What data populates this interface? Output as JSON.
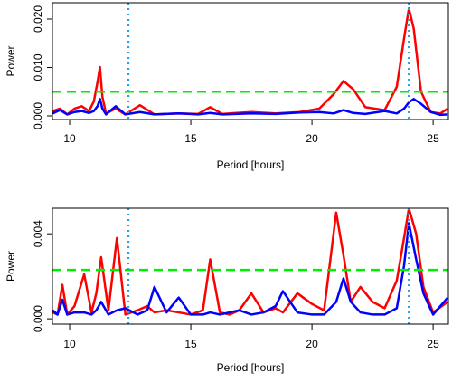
{
  "chart_data": [
    {
      "type": "line",
      "xlabel": "Period [hours]",
      "ylabel": "Power",
      "x": [
        9.3,
        9.6,
        9.9,
        10.2,
        10.5,
        10.8,
        11.0,
        11.15,
        11.25,
        11.35,
        11.5,
        11.9,
        12.3,
        12.9,
        13.5,
        14.5,
        15.3,
        15.8,
        16.3,
        17.5,
        18.5,
        19.5,
        20.3,
        20.9,
        21.3,
        21.7,
        22.2,
        23.0,
        23.5,
        23.8,
        24.0,
        24.2,
        24.5,
        24.9,
        25.3,
        25.6
      ],
      "series": [
        {
          "color": "#ff0000",
          "values": [
            0.001,
            0.0015,
            0.0003,
            0.0015,
            0.002,
            0.001,
            0.003,
            0.007,
            0.0101,
            0.004,
            0.0005,
            0.0015,
            0.0003,
            0.0022,
            0.0003,
            0.0005,
            0.0004,
            0.0018,
            0.0004,
            0.0008,
            0.0005,
            0.0008,
            0.0015,
            0.0045,
            0.0072,
            0.0055,
            0.0018,
            0.0012,
            0.006,
            0.016,
            0.0222,
            0.018,
            0.005,
            0.0008,
            0.0005,
            0.0015
          ]
        },
        {
          "color": "#0000ff",
          "values": [
            0.0005,
            0.0012,
            0.0003,
            0.0008,
            0.001,
            0.0006,
            0.001,
            0.002,
            0.0035,
            0.0015,
            0.0003,
            0.002,
            0.0003,
            0.0008,
            0.0003,
            0.0005,
            0.0003,
            0.0006,
            0.0003,
            0.0005,
            0.0004,
            0.0007,
            0.0008,
            0.0005,
            0.0012,
            0.0006,
            0.0004,
            0.001,
            0.0005,
            0.0015,
            0.0028,
            0.0035,
            0.0025,
            0.0008,
            0.0002,
            0.0003
          ]
        }
      ],
      "xlim": [
        9.29,
        25.63
      ],
      "xticks": [
        10,
        15,
        20,
        25
      ],
      "ylim": [
        -0.00075,
        0.02336
      ],
      "yticks": [
        {
          "value": 0,
          "label": "0.000"
        },
        {
          "value": 0.01,
          "label": "0.010"
        },
        {
          "value": 0.02,
          "label": "0.020"
        }
      ],
      "hline": {
        "value": 0.005,
        "color": "#00ee00"
      },
      "vlines": {
        "values": [
          12.42,
          24.0
        ],
        "color": "#2b9fe0"
      }
    },
    {
      "type": "line",
      "xlabel": "Period [hours]",
      "ylabel": "Power",
      "x": [
        9.3,
        9.5,
        9.7,
        9.9,
        10.2,
        10.6,
        10.9,
        11.1,
        11.3,
        11.6,
        11.95,
        12.3,
        12.8,
        13.2,
        13.5,
        14.0,
        14.5,
        15.0,
        15.5,
        15.8,
        16.2,
        16.6,
        17.0,
        17.5,
        18.0,
        18.5,
        18.8,
        19.4,
        20.0,
        20.5,
        21.0,
        21.3,
        21.6,
        22.0,
        22.5,
        23.0,
        23.5,
        23.8,
        24.0,
        24.3,
        24.6,
        25.0,
        25.6
      ],
      "series": [
        {
          "color": "#ff0000",
          "values": [
            0.0003,
            0.0002,
            0.0016,
            0.0002,
            0.0006,
            0.0021,
            0.0003,
            0.0012,
            0.0029,
            0.0004,
            0.0038,
            0.0002,
            0.0004,
            0.0006,
            0.0003,
            0.0004,
            0.0003,
            0.0002,
            0.0004,
            0.0028,
            0.0003,
            0.0002,
            0.0004,
            0.0012,
            0.0003,
            0.0005,
            0.0003,
            0.0012,
            0.0007,
            0.0004,
            0.005,
            0.003,
            0.0008,
            0.0015,
            0.0008,
            0.0005,
            0.0018,
            0.0038,
            0.0052,
            0.004,
            0.0015,
            0.0003,
            0.0008
          ]
        },
        {
          "color": "#0000ff",
          "values": [
            0.0004,
            0.0002,
            0.0009,
            0.0002,
            0.0003,
            0.0003,
            0.0002,
            0.0004,
            0.0008,
            0.0002,
            0.0004,
            0.0005,
            0.0002,
            0.0004,
            0.0015,
            0.0003,
            0.001,
            0.0002,
            0.0002,
            0.0003,
            0.0002,
            0.0003,
            0.0004,
            0.0002,
            0.0003,
            0.0006,
            0.0013,
            0.0003,
            0.0002,
            0.0002,
            0.0008,
            0.0019,
            0.0008,
            0.0003,
            0.0002,
            0.0002,
            0.0005,
            0.0025,
            0.0045,
            0.0028,
            0.0012,
            0.0002,
            0.001
          ]
        }
      ],
      "xlim": [
        9.29,
        25.63
      ],
      "xticks": [
        10,
        15,
        20,
        25
      ],
      "ylim": [
        -0.00025,
        0.0052
      ],
      "yticks": [
        {
          "value": 0,
          "label": "0.000"
        },
        {
          "value": 0.004,
          "label": "0.004"
        }
      ],
      "hline": {
        "value": 0.0023,
        "color": "#00ee00"
      },
      "vlines": {
        "values": [
          12.42,
          24.0
        ],
        "color": "#2b9fe0"
      }
    }
  ]
}
